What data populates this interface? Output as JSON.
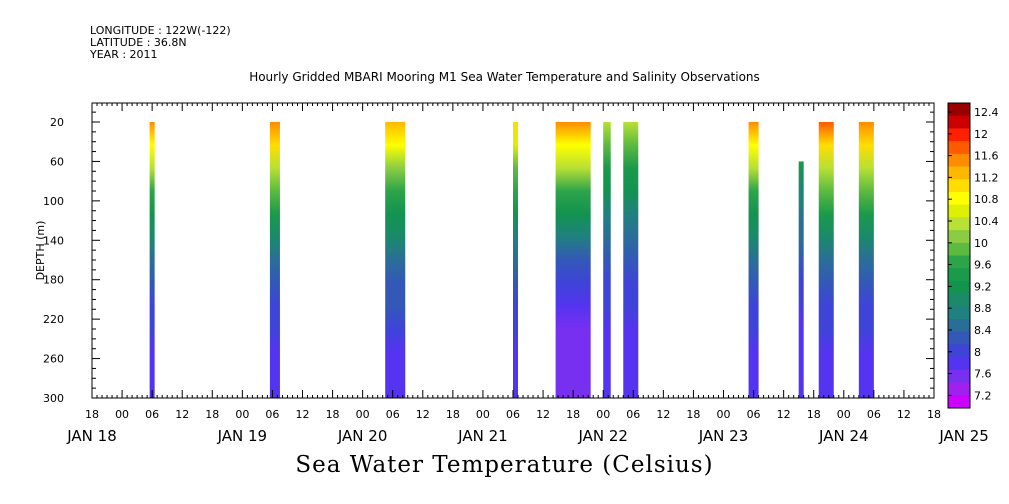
{
  "header": {
    "longitude": "LONGITUDE : 122W(-122)",
    "latitude": "LATITUDE : 36.8N",
    "year": "YEAR : 2011",
    "title": "Hourly Gridded MBARI Mooring M1 Sea Water Temperature and Salinity Observations",
    "variable_title": "Sea Water Temperature (Celsius)"
  },
  "chart_data": {
    "type": "heatmap",
    "title": "Hourly Gridded MBARI Mooring M1 Sea Water Temperature and Salinity Observations",
    "xlabel": "",
    "ylabel": "DEPTH (m)",
    "colorbar_label": "Sea Water Temperature (Celsius)",
    "y_reversed": true,
    "ylim": [
      300,
      0
    ],
    "y_ticks": [
      20,
      60,
      100,
      140,
      180,
      220,
      260,
      300
    ],
    "x_range_hours": [
      0,
      168
    ],
    "x_hour_ticks": [
      "18",
      "00",
      "06",
      "12",
      "18",
      "00",
      "06",
      "12",
      "18",
      "00",
      "06",
      "12",
      "18",
      "00",
      "06",
      "12",
      "18",
      "00",
      "06",
      "12",
      "18",
      "00",
      "06",
      "12",
      "18",
      "00",
      "06",
      "12",
      "18"
    ],
    "x_date_labels": [
      "JAN 18",
      "JAN 19",
      "JAN 20",
      "JAN 21",
      "JAN 22",
      "JAN 23",
      "JAN 24",
      "JAN 25"
    ],
    "colorbar_levels": [
      "12.4",
      "12",
      "11.6",
      "11.2",
      "10.8",
      "10.4",
      "10",
      "9.6",
      "9.2",
      "8.8",
      "8.4",
      "8",
      "7.6",
      "7.2"
    ],
    "colorbar_colors": [
      "#990000",
      "#cc0000",
      "#ff2000",
      "#ff5a00",
      "#ff8c00",
      "#ffb800",
      "#ffdd00",
      "#ffff00",
      "#ddf000",
      "#b8e035",
      "#8ccc44",
      "#5cba40",
      "#2ea44a",
      "#1a9a4a",
      "#139350",
      "#1a8a6a",
      "#208080",
      "#2a6e98",
      "#3358b8",
      "#3e44d8",
      "#5434f0",
      "#7830f0",
      "#a020f0",
      "#cc00ff"
    ],
    "series": [
      {
        "start_hour": 11.5,
        "end_hour": 12.5,
        "top_depth": 20,
        "top_temp": 11.8,
        "bottom_temp": 7.7,
        "max_temp": 11.8
      },
      {
        "start_hour": 35.5,
        "end_hour": 37.5,
        "top_depth": 20,
        "top_temp": 11.9,
        "bottom_temp": 7.7,
        "max_temp": 11.9
      },
      {
        "start_hour": 58.5,
        "end_hour": 62.5,
        "top_depth": 20,
        "top_temp": 11.6,
        "bottom_temp": 7.8,
        "max_temp": 11.6
      },
      {
        "start_hour": 84.0,
        "end_hour": 85.0,
        "top_depth": 20,
        "top_temp": 11.3,
        "bottom_temp": 7.8,
        "max_temp": 11.3
      },
      {
        "start_hour": 92.5,
        "end_hour": 99.5,
        "top_depth": 20,
        "top_temp": 11.9,
        "bottom_temp": 7.4,
        "max_temp": 11.9
      },
      {
        "start_hour": 102.0,
        "end_hour": 103.5,
        "top_depth": 20,
        "top_temp": 10.6,
        "bottom_temp": 7.7,
        "max_temp": 10.6
      },
      {
        "start_hour": 106.0,
        "end_hour": 109.0,
        "top_depth": 20,
        "top_temp": 10.5,
        "bottom_temp": 7.7,
        "max_temp": 10.5
      },
      {
        "start_hour": 131.0,
        "end_hour": 133.0,
        "top_depth": 20,
        "top_temp": 11.8,
        "bottom_temp": 7.7,
        "max_temp": 11.8
      },
      {
        "start_hour": 141.0,
        "end_hour": 142.0,
        "top_depth": 60,
        "top_temp": 9.4,
        "bottom_temp": 7.7,
        "max_temp": 9.4
      },
      {
        "start_hour": 145.0,
        "end_hour": 148.0,
        "top_depth": 20,
        "top_temp": 12.0,
        "bottom_temp": 7.7,
        "max_temp": 12.0
      },
      {
        "start_hour": 153.0,
        "end_hour": 156.0,
        "top_depth": 20,
        "top_temp": 11.9,
        "bottom_temp": 7.7,
        "max_temp": 11.9
      }
    ],
    "grid": false,
    "legend_position": "right"
  }
}
